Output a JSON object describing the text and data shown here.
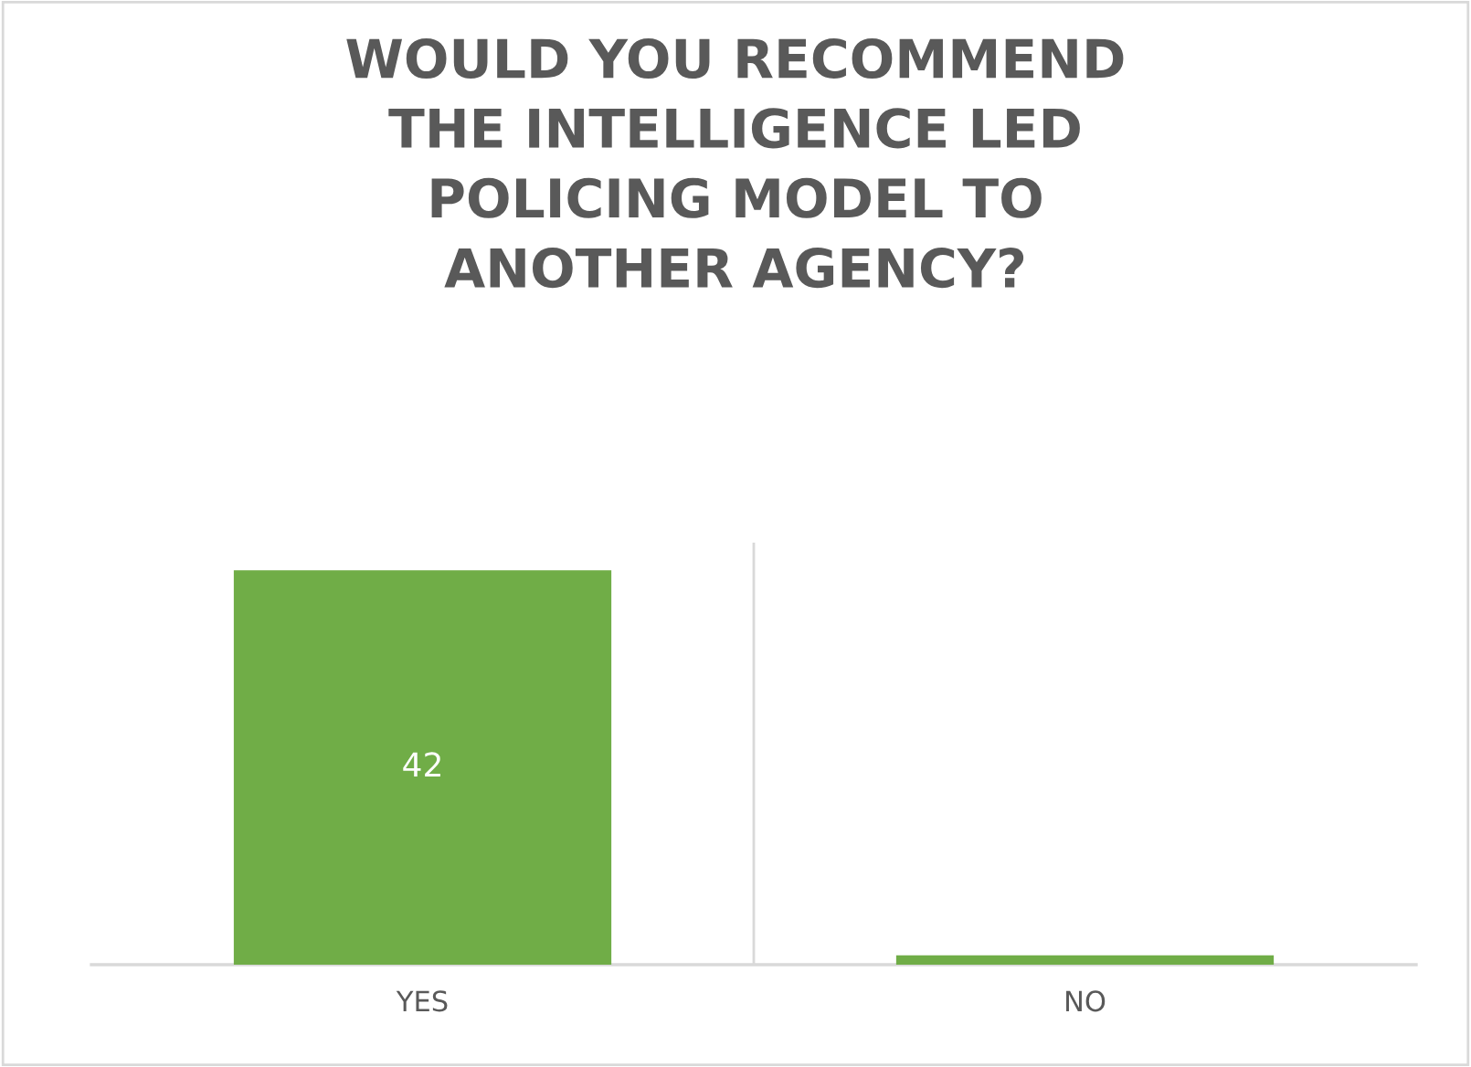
{
  "chart_data": {
    "type": "bar",
    "title": "WOULD YOU RECOMMEND\nTHE INTELLIGENCE LED\nPOLICING MODEL TO\nANOTHER AGENCY?",
    "categories": [
      "YES",
      "NO"
    ],
    "values": [
      42,
      1
    ],
    "color": "#70ad47",
    "value_labels": [
      "42",
      null
    ],
    "grid": "x"
  }
}
